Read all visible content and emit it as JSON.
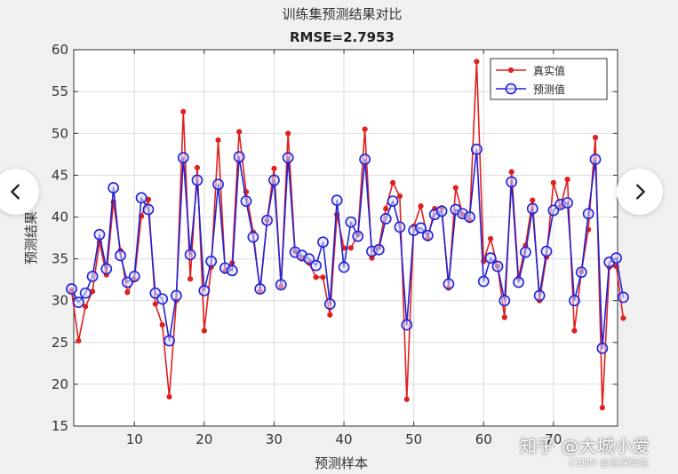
{
  "chart_data": {
    "type": "line",
    "title": "训练集预测结果对比",
    "subtitle": "RMSE=2.7953",
    "xlabel": "预测样本",
    "ylabel": "预测结果",
    "xlim": [
      1,
      80
    ],
    "ylim": [
      15,
      60
    ],
    "xticks": [
      10,
      20,
      30,
      40,
      50,
      60,
      70
    ],
    "yticks": [
      15,
      20,
      25,
      30,
      35,
      40,
      45,
      50,
      55,
      60
    ],
    "grid": true,
    "legend_position": "top-right",
    "x": [
      1,
      2,
      3,
      4,
      5,
      6,
      7,
      8,
      9,
      10,
      11,
      12,
      13,
      14,
      15,
      16,
      17,
      18,
      19,
      20,
      21,
      22,
      23,
      24,
      25,
      26,
      27,
      28,
      29,
      30,
      31,
      32,
      33,
      34,
      35,
      36,
      37,
      38,
      39,
      40,
      41,
      42,
      43,
      44,
      45,
      46,
      47,
      48,
      49,
      50,
      51,
      52,
      53,
      54,
      55,
      56,
      57,
      58,
      59,
      60,
      61,
      62,
      63,
      64,
      65,
      66,
      67,
      68,
      69,
      70,
      71,
      72,
      73,
      74,
      75,
      76,
      77,
      78,
      79,
      80
    ],
    "series": [
      {
        "name": "真实值",
        "color": "#e0201e",
        "marker": "dot",
        "values": [
          31.2,
          25.2,
          29.3,
          31.1,
          37.0,
          33.1,
          41.8,
          36.0,
          31.0,
          32.5,
          40.1,
          42.1,
          29.6,
          27.1,
          18.5,
          30.0,
          52.6,
          32.6,
          45.9,
          26.4,
          34.0,
          49.2,
          33.5,
          34.5,
          50.2,
          43.0,
          38.2,
          31.1,
          39.6,
          45.8,
          31.7,
          50.0,
          35.9,
          35.0,
          34.5,
          32.8,
          32.8,
          28.3,
          40.3,
          36.3,
          36.3,
          37.9,
          50.5,
          35.1,
          36.4,
          41.0,
          44.1,
          42.5,
          18.2,
          38.9,
          41.3,
          37.4,
          41.0,
          41.1,
          31.5,
          43.5,
          40.3,
          39.6,
          58.6,
          34.7,
          37.4,
          34.1,
          28.0,
          45.4,
          32.7,
          36.6,
          42.0,
          30.0,
          35.2,
          44.1,
          41.2,
          44.5,
          26.4,
          33.5,
          38.5,
          49.5,
          17.2,
          34.0,
          34.1,
          27.9
        ]
      },
      {
        "name": "预测值",
        "color": "#2222d6",
        "marker": "circle",
        "values": [
          31.4,
          29.8,
          30.9,
          32.9,
          37.9,
          33.8,
          43.5,
          35.4,
          32.2,
          32.9,
          42.3,
          40.9,
          30.9,
          30.2,
          25.2,
          30.6,
          47.1,
          35.5,
          44.4,
          31.2,
          34.7,
          43.9,
          33.9,
          33.6,
          47.2,
          41.9,
          37.6,
          31.4,
          39.6,
          44.4,
          31.9,
          47.1,
          35.8,
          35.4,
          35.0,
          34.2,
          37.0,
          29.6,
          42.0,
          34.0,
          39.4,
          37.7,
          46.9,
          35.9,
          36.1,
          39.8,
          41.9,
          38.8,
          27.1,
          38.4,
          38.7,
          37.8,
          40.3,
          40.7,
          32.0,
          40.9,
          40.4,
          40.0,
          48.1,
          32.3,
          35.1,
          34.1,
          30.0,
          44.2,
          32.2,
          35.8,
          41.0,
          30.6,
          35.9,
          40.8,
          41.5,
          41.7,
          30.0,
          33.4,
          40.4,
          46.9,
          24.3,
          34.6,
          35.1,
          30.4
        ]
      }
    ]
  },
  "navigation": {
    "prev_icon": "chevron-left-icon",
    "next_icon": "chevron-right-icon"
  },
  "watermark": {
    "main": "知乎 @大城小爱",
    "sub": "CSDN @资深码侬"
  }
}
